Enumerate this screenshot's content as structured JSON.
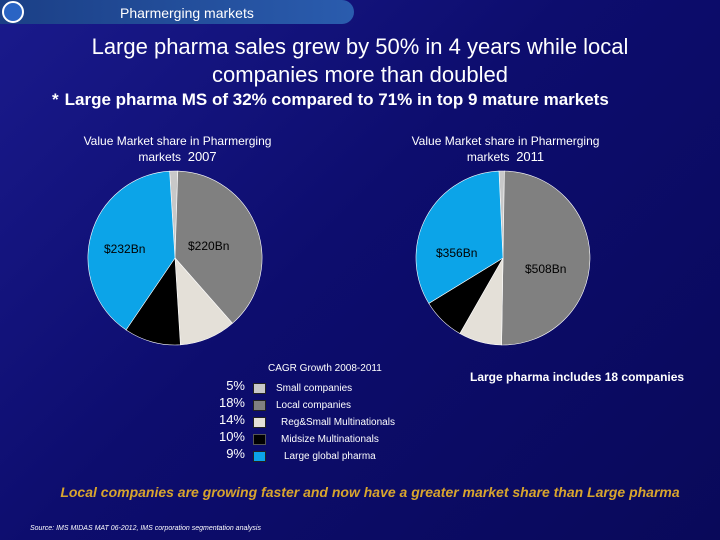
{
  "header": {
    "section_label": "Pharmerging markets"
  },
  "title_line1": "Large pharma sales grew by 50% in 4 years while local",
  "title_line2": "companies more than doubled",
  "subtitle": {
    "star": "*",
    "text": "Large pharma MS of 32% compared to 71% in top 9 mature markets"
  },
  "colors": {
    "small_companies": "#c8c8c8",
    "local_companies": "#808080",
    "reg_small_multinationals": "#e4e0d8",
    "midsize_multinationals": "#000000",
    "large_global_pharma": "#0ca4e8",
    "conclusion": "#d8a52e"
  },
  "chart_data": [
    {
      "type": "pie",
      "title_line1": "Value Market share in Pharmerging",
      "title_line2": "markets",
      "year": "2007",
      "slices": [
        {
          "name": "Small companies",
          "value": 1.5
        },
        {
          "name": "Local companies",
          "value": 38.0
        },
        {
          "name": "Reg&Small Multinationals",
          "value": 10.5
        },
        {
          "name": "Midsize Multinationals",
          "value": 10.5
        },
        {
          "name": "Large global pharma",
          "value": 39.5
        }
      ],
      "labels": [
        {
          "text": "$232Bn",
          "for": "Large global pharma"
        },
        {
          "text": "$220Bn",
          "for": "Local companies"
        }
      ]
    },
    {
      "type": "pie",
      "title_line1": "Value Market share in Pharmerging",
      "title_line2": "markets",
      "year": "2011",
      "slices": [
        {
          "name": "Small companies",
          "value": 1.0
        },
        {
          "name": "Local companies",
          "value": 50.0
        },
        {
          "name": "Reg&Small Multinationals",
          "value": 8.0
        },
        {
          "name": "Midsize Multinationals",
          "value": 8.0
        },
        {
          "name": "Large global pharma",
          "value": 33.0
        }
      ],
      "labels": [
        {
          "text": "$356Bn",
          "for": "Large global pharma"
        },
        {
          "text": "$508Bn",
          "for": "Local companies"
        }
      ]
    }
  ],
  "legend": {
    "title": "CAGR Growth 2008-2011",
    "items": [
      {
        "pct": "5%",
        "label": "Small companies"
      },
      {
        "pct": "18%",
        "label": "Local companies"
      },
      {
        "pct": "14%",
        "label": "Reg&Small Multinationals"
      },
      {
        "pct": "10%",
        "label": "Midsize Multinationals"
      },
      {
        "pct": "9%",
        "label": "Large global pharma"
      }
    ]
  },
  "note": "Large pharma includes 18 companies",
  "conclusion": "Local companies are growing faster and now have a greater market share than Large pharma",
  "source": "Source: IMS MIDAS MAT 06-2012, IMS corporation segmentation analysis"
}
